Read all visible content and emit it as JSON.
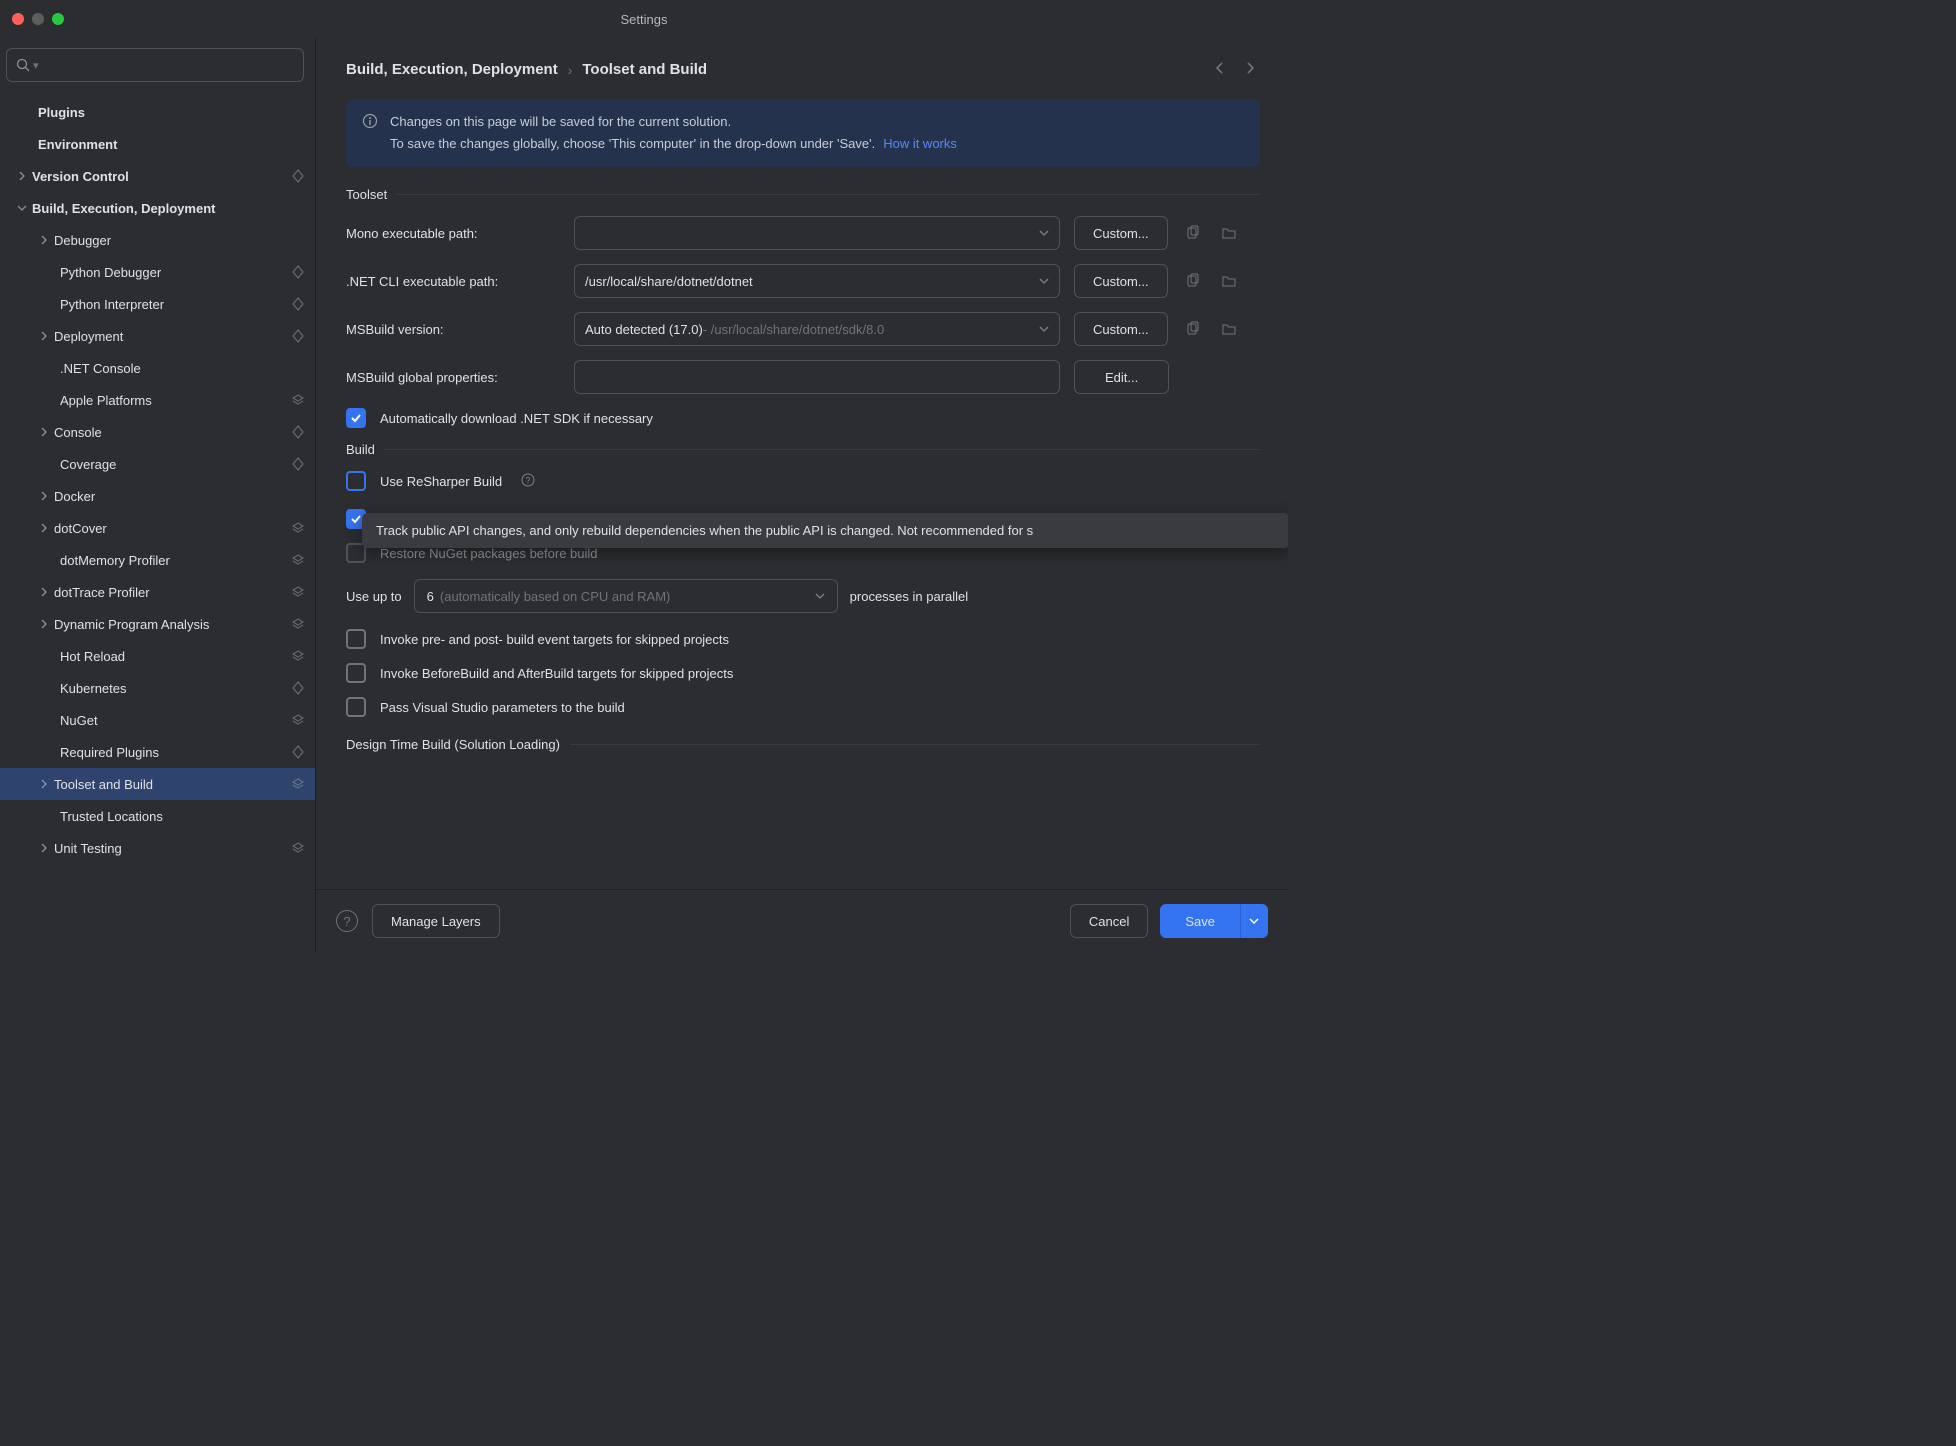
{
  "colors": {
    "bg": "#2b2d30",
    "panel_border": "#1e1f22",
    "input_border": "#4e5157",
    "text": "#dfe1e5",
    "dim": "#6f737a",
    "accent": "#3574f0",
    "banner_bg": "#25324d",
    "link": "#548af7",
    "selected_row": "#2e436e",
    "traffic_red": "#ff5f57",
    "traffic_yellow": "#5d5d5d",
    "traffic_green": "#28c840"
  },
  "window_title": "Settings",
  "search_placeholder": "",
  "sidebar": {
    "items": [
      {
        "label": "Plugins",
        "indent": 38,
        "bold": true
      },
      {
        "label": "Environment",
        "indent": 38,
        "bold": true
      },
      {
        "label": "Version Control",
        "indent": 38,
        "bold": true,
        "chevron": "right",
        "chev_indent": 14,
        "badge": "scope"
      },
      {
        "label": "Build, Execution, Deployment",
        "indent": 38,
        "bold": true,
        "chevron": "down",
        "chev_indent": 14
      },
      {
        "label": "Debugger",
        "indent": 60,
        "chevron": "right",
        "chev_indent": 36
      },
      {
        "label": "Python Debugger",
        "indent": 60,
        "badge": "scope"
      },
      {
        "label": "Python Interpreter",
        "indent": 60,
        "badge": "scope"
      },
      {
        "label": "Deployment",
        "indent": 60,
        "chevron": "right",
        "chev_indent": 36,
        "badge": "scope"
      },
      {
        "label": ".NET Console",
        "indent": 60
      },
      {
        "label": "Apple Platforms",
        "indent": 60,
        "badge": "layers"
      },
      {
        "label": "Console",
        "indent": 60,
        "chevron": "right",
        "chev_indent": 36,
        "badge": "scope"
      },
      {
        "label": "Coverage",
        "indent": 60,
        "badge": "scope"
      },
      {
        "label": "Docker",
        "indent": 60,
        "chevron": "right",
        "chev_indent": 36
      },
      {
        "label": "dotCover",
        "indent": 60,
        "chevron": "right",
        "chev_indent": 36,
        "badge": "layers"
      },
      {
        "label": "dotMemory Profiler",
        "indent": 60,
        "badge": "layers"
      },
      {
        "label": "dotTrace Profiler",
        "indent": 60,
        "chevron": "right",
        "chev_indent": 36,
        "badge": "layers"
      },
      {
        "label": "Dynamic Program Analysis",
        "indent": 60,
        "chevron": "right",
        "chev_indent": 36,
        "badge": "layers"
      },
      {
        "label": "Hot Reload",
        "indent": 60,
        "badge": "layers"
      },
      {
        "label": "Kubernetes",
        "indent": 60,
        "badge": "scope"
      },
      {
        "label": "NuGet",
        "indent": 60,
        "badge": "layers"
      },
      {
        "label": "Required Plugins",
        "indent": 60,
        "badge": "scope"
      },
      {
        "label": "Toolset and Build",
        "indent": 60,
        "chevron": "right",
        "chev_indent": 36,
        "badge": "layers",
        "selected": true
      },
      {
        "label": "Trusted Locations",
        "indent": 60
      },
      {
        "label": "Unit Testing",
        "indent": 60,
        "chevron": "right",
        "chev_indent": 36,
        "badge": "layers"
      }
    ]
  },
  "breadcrumb": {
    "a": "Build, Execution, Deployment",
    "b": "Toolset and Build"
  },
  "banner": {
    "line1": "Changes on this page will be saved for the current solution.",
    "line2": "To save the changes globally, choose 'This computer' in the drop-down under 'Save'.",
    "link": "How it works"
  },
  "sections": {
    "toolset": "Toolset",
    "build": "Build",
    "design": "Design Time Build (Solution Loading)"
  },
  "toolset": {
    "mono_label": "Mono executable path:",
    "mono_value": "",
    "dotnet_label": ".NET CLI executable path:",
    "dotnet_value": "/usr/local/share/dotnet/dotnet",
    "msbuild_label": "MSBuild version:",
    "msbuild_value": "Auto detected (17.0)",
    "msbuild_path": " - /usr/local/share/dotnet/sdk/8.0",
    "globals_label": "MSBuild global properties:",
    "globals_value": "",
    "custom_btn": "Custom...",
    "edit_btn": "Edit...",
    "auto_download": "Automatically download .NET SDK if necessary"
  },
  "build": {
    "use_resharper": "Use ReSharper Build",
    "tooltip": "Track public API changes, and only rebuild dependencies when the public API is changed. Not recommended for s",
    "restore_nuget": "Restore NuGet packages before build",
    "use_up_to": "Use up to",
    "parallel_num": "6",
    "parallel_hint": "(automatically based on CPU and RAM)",
    "parallel_suffix": "processes in parallel",
    "invoke_pre_post": "Invoke pre- and post- build event targets for skipped projects",
    "invoke_before_after": "Invoke BeforeBuild and AfterBuild targets for skipped projects",
    "pass_vs": "Pass Visual Studio parameters to the build"
  },
  "footer": {
    "manage_layers": "Manage Layers",
    "cancel": "Cancel",
    "save": "Save"
  }
}
